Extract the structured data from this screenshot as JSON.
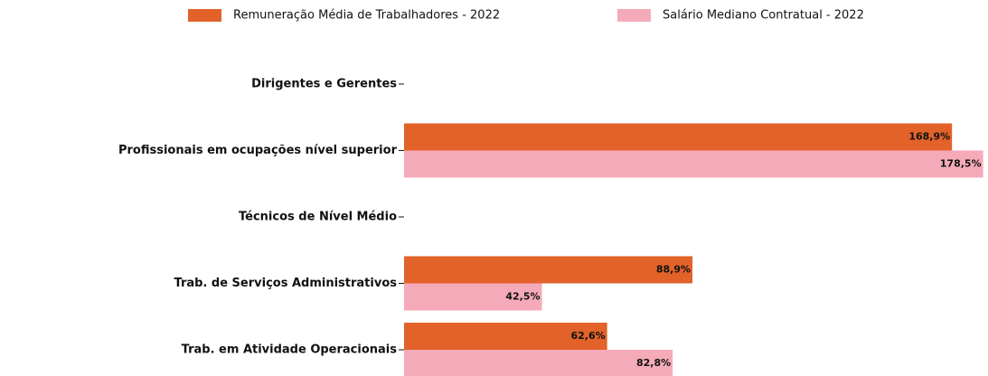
{
  "chart_data": {
    "type": "barh",
    "categories": [
      "Dirigentes e Gerentes",
      "Profissionais em ocupações nível superior",
      "Técnicos de Nível Médio",
      "Trab. de Serviços Administrativos",
      "Trab. em Atividade Operacionais"
    ],
    "series": [
      {
        "name": "Remuneração Média de Trabalhadores - 2022",
        "color": "#e2622a",
        "values": [
          null,
          168.9,
          null,
          88.9,
          62.6
        ],
        "value_labels": [
          null,
          "168,9%",
          null,
          "88,9%",
          "62,6%"
        ]
      },
      {
        "name": "Salário Mediano Contratual - 2022",
        "color": "#f5aab9",
        "values": [
          null,
          178.5,
          null,
          42.5,
          82.8
        ],
        "value_labels": [
          null,
          "178,5%",
          null,
          "42,5%",
          "82,8%"
        ]
      }
    ],
    "xlim": [
      0,
      180
    ],
    "legend": "top"
  }
}
